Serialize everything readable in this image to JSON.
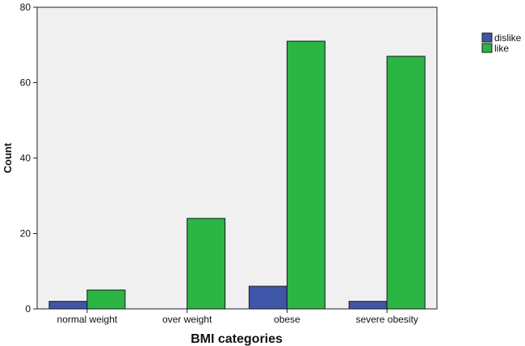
{
  "chart_data": {
    "type": "bar",
    "title": "",
    "xlabel": "BMI categories",
    "ylabel": "Count",
    "categories": [
      "normal weight",
      "over weight",
      "obese",
      "severe obesity"
    ],
    "series": [
      {
        "name": "dislike",
        "color": "#3f55a8",
        "values": [
          2,
          0,
          6,
          2
        ]
      },
      {
        "name": "like",
        "color": "#2bb544",
        "values": [
          5,
          24,
          71,
          67
        ]
      }
    ],
    "ylim": [
      0,
      80
    ],
    "yticks": [
      0,
      20,
      40,
      60,
      80
    ],
    "grid": false,
    "legend_position": "top-right",
    "background_color": "#f0f0f0"
  }
}
